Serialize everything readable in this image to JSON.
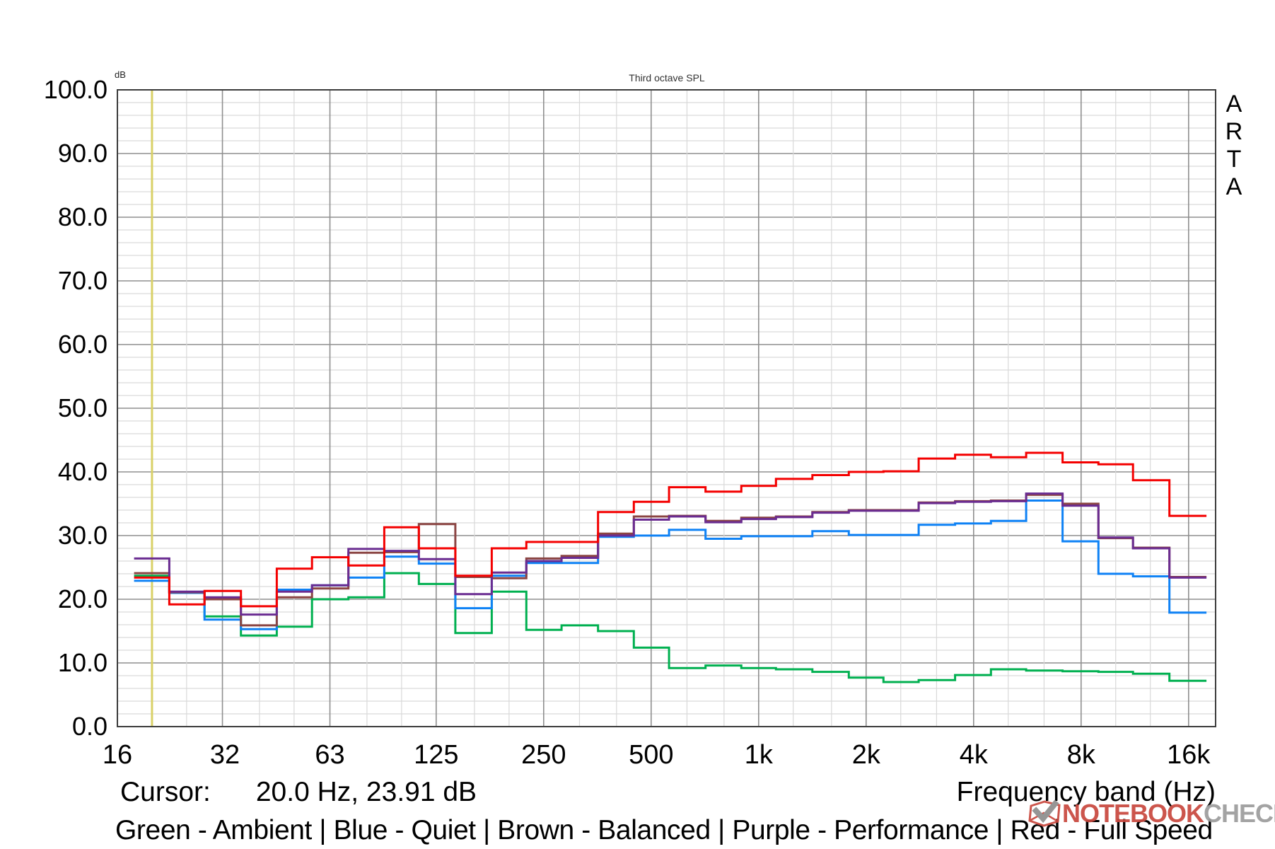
{
  "header": {
    "db_unit": "dB",
    "title": "Third octave SPL",
    "right_app_label": [
      "A",
      "R",
      "T",
      "A"
    ]
  },
  "y_axis": {
    "labels": [
      "100.0",
      "90.0",
      "80.0",
      "70.0",
      "60.0",
      "50.0",
      "40.0",
      "30.0",
      "20.0",
      "10.0",
      "0.0"
    ]
  },
  "x_axis": {
    "title": "Frequency band (Hz)",
    "labels": [
      {
        "text": "16",
        "hz": 16
      },
      {
        "text": "32",
        "hz": 32
      },
      {
        "text": "63",
        "hz": 63
      },
      {
        "text": "125",
        "hz": 125
      },
      {
        "text": "250",
        "hz": 250
      },
      {
        "text": "500",
        "hz": 500
      },
      {
        "text": "1k",
        "hz": 1000
      },
      {
        "text": "2k",
        "hz": 2000
      },
      {
        "text": "4k",
        "hz": 4000
      },
      {
        "text": "8k",
        "hz": 8000
      },
      {
        "text": "16k",
        "hz": 16000
      }
    ]
  },
  "cursor_readout": {
    "label": "Cursor:",
    "value": "20.0 Hz, 23.91 dB"
  },
  "legend": {
    "text": "Green - Ambient | Blue - Quiet | Brown - Balanced | Purple - Performance |  Red - Full Speed"
  },
  "watermark": {
    "part1": "NOTEBOOK",
    "part2": "CHECK"
  },
  "colors": {
    "green": "#00b050",
    "blue": "#0f82f5",
    "brown": "#8b4543",
    "purple": "#6a2c91",
    "red": "#f40000",
    "cursor_line": "#d9d168",
    "grid_minor": "#d9d9d9",
    "grid_major": "#8f8f8f",
    "border": "#3c3c3c",
    "logo_red": "#c9493f",
    "logo_gray": "#9d9d9d"
  },
  "chart_data": {
    "type": "line",
    "subtype": "third-octave step (staircase) SPL spectrum",
    "title": "Third octave SPL",
    "xlabel": "Frequency band (Hz)",
    "ylabel": "dB",
    "ylim": [
      0,
      100
    ],
    "y_major_step": 10,
    "y_minor_step": 2,
    "x_log_range_hz": [
      16,
      19000
    ],
    "grid": true,
    "legend_position": "bottom",
    "cursor": {
      "hz": 20.0,
      "db": 23.91
    },
    "categories": [
      "20",
      "25",
      "31.5",
      "40",
      "50",
      "63",
      "80",
      "100",
      "125",
      "160",
      "200",
      "250",
      "315",
      "400",
      "500",
      "630",
      "800",
      "1k",
      "1.25k",
      "1.6k",
      "2k",
      "2.5k",
      "3.15k",
      "4k",
      "5k",
      "6.3k",
      "8k",
      "10k",
      "12.5k",
      "16k"
    ],
    "band_centers_hz": [
      20,
      25,
      31.5,
      40,
      50,
      63,
      80,
      100,
      125,
      160,
      200,
      250,
      315,
      400,
      500,
      630,
      800,
      1000,
      1250,
      1600,
      2000,
      2500,
      3150,
      4000,
      5000,
      6300,
      8000,
      10000,
      12500,
      16000
    ],
    "series": [
      {
        "name": "Ambient",
        "color_key": "green",
        "values": [
          23.7,
          21.1,
          17.3,
          14.3,
          15.7,
          20.0,
          20.3,
          24.1,
          22.4,
          14.7,
          21.2,
          15.2,
          15.9,
          15.0,
          12.4,
          9.2,
          9.6,
          9.2,
          9.0,
          8.6,
          7.7,
          7.0,
          7.3,
          8.1,
          9.0,
          8.8,
          8.7,
          8.6,
          8.3,
          7.2
        ]
      },
      {
        "name": "Quiet",
        "color_key": "blue",
        "values": [
          22.9,
          21.0,
          16.8,
          15.3,
          21.5,
          22.2,
          23.4,
          26.7,
          25.6,
          18.6,
          23.7,
          25.7,
          25.7,
          29.8,
          30.0,
          30.9,
          29.5,
          29.9,
          29.9,
          30.7,
          30.1,
          30.1,
          31.7,
          31.9,
          32.3,
          35.5,
          29.1,
          24.0,
          23.6,
          17.9
        ]
      },
      {
        "name": "Balanced",
        "color_key": "brown",
        "values": [
          24.1,
          21.1,
          20.0,
          15.9,
          20.3,
          21.7,
          27.3,
          27.4,
          31.8,
          23.5,
          23.3,
          26.4,
          26.8,
          30.3,
          33.0,
          33.1,
          32.3,
          32.8,
          33.0,
          33.7,
          34.0,
          34.0,
          35.2,
          35.4,
          35.5,
          36.4,
          35.0,
          29.6,
          28.1,
          23.5
        ]
      },
      {
        "name": "Performance",
        "color_key": "purple",
        "values": [
          26.4,
          21.2,
          20.3,
          17.6,
          21.2,
          22.2,
          27.9,
          27.6,
          26.3,
          20.8,
          24.2,
          26.0,
          26.5,
          30.0,
          32.5,
          33.0,
          32.1,
          32.6,
          32.9,
          33.6,
          33.9,
          33.9,
          35.1,
          35.3,
          35.4,
          36.6,
          34.7,
          29.7,
          28.0,
          23.4
        ]
      },
      {
        "name": "Full Speed",
        "color_key": "red",
        "values": [
          23.4,
          19.2,
          21.3,
          18.9,
          24.8,
          26.6,
          25.3,
          31.3,
          28.0,
          23.7,
          28.0,
          29.0,
          29.0,
          33.7,
          35.3,
          37.6,
          36.9,
          37.8,
          38.9,
          39.5,
          40.0,
          40.1,
          42.1,
          42.7,
          42.3,
          43.0,
          41.5,
          41.2,
          38.7,
          33.1
        ]
      }
    ],
    "grid_major_freqs_hz": [
      31.5,
      63,
      125,
      250,
      500,
      1000,
      2000,
      4000,
      8000,
      16000
    ]
  }
}
